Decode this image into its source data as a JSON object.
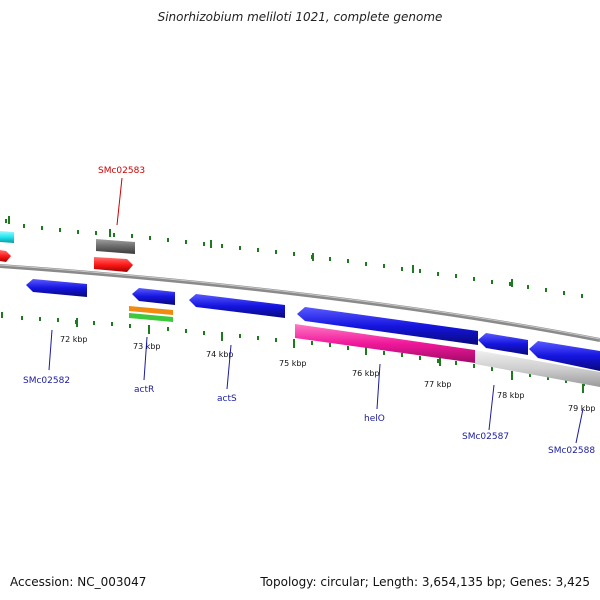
{
  "title": "Sinorhizobium meliloti 1021, complete genome",
  "accession": "Accession: NC_003047",
  "summary": "Topology: circular; Length: 3,654,135 bp; Genes: 3,425",
  "ruler": [
    "72 kbp",
    "73 kbp",
    "74 kbp",
    "75 kbp",
    "76 kbp",
    "77 kbp",
    "78 kbp",
    "79 kbp"
  ],
  "gene_labels": [
    {
      "name": "SMc02583",
      "color": "#cc0000"
    },
    {
      "name": "SMc02582",
      "color": "#1a1aa0"
    },
    {
      "name": "actR",
      "color": "#1a1aa0"
    },
    {
      "name": "actS",
      "color": "#1a1aa0"
    },
    {
      "name": "helO",
      "color": "#1a1aa0"
    },
    {
      "name": "SMc02587",
      "color": "#1a1aa0"
    },
    {
      "name": "SMc02588",
      "color": "#1a1aa0"
    }
  ],
  "colors": {
    "backbone": "#8a8a8a",
    "tick": "#1e7a1e",
    "cds": "#1515e0",
    "rna": "#ff1a1a",
    "misc": "#6a6a6a",
    "cyan": "#22e6f0",
    "pink": "#f0189a",
    "light": "#cfcfcf",
    "orange": "#f08a10",
    "green": "#3ec83e"
  }
}
